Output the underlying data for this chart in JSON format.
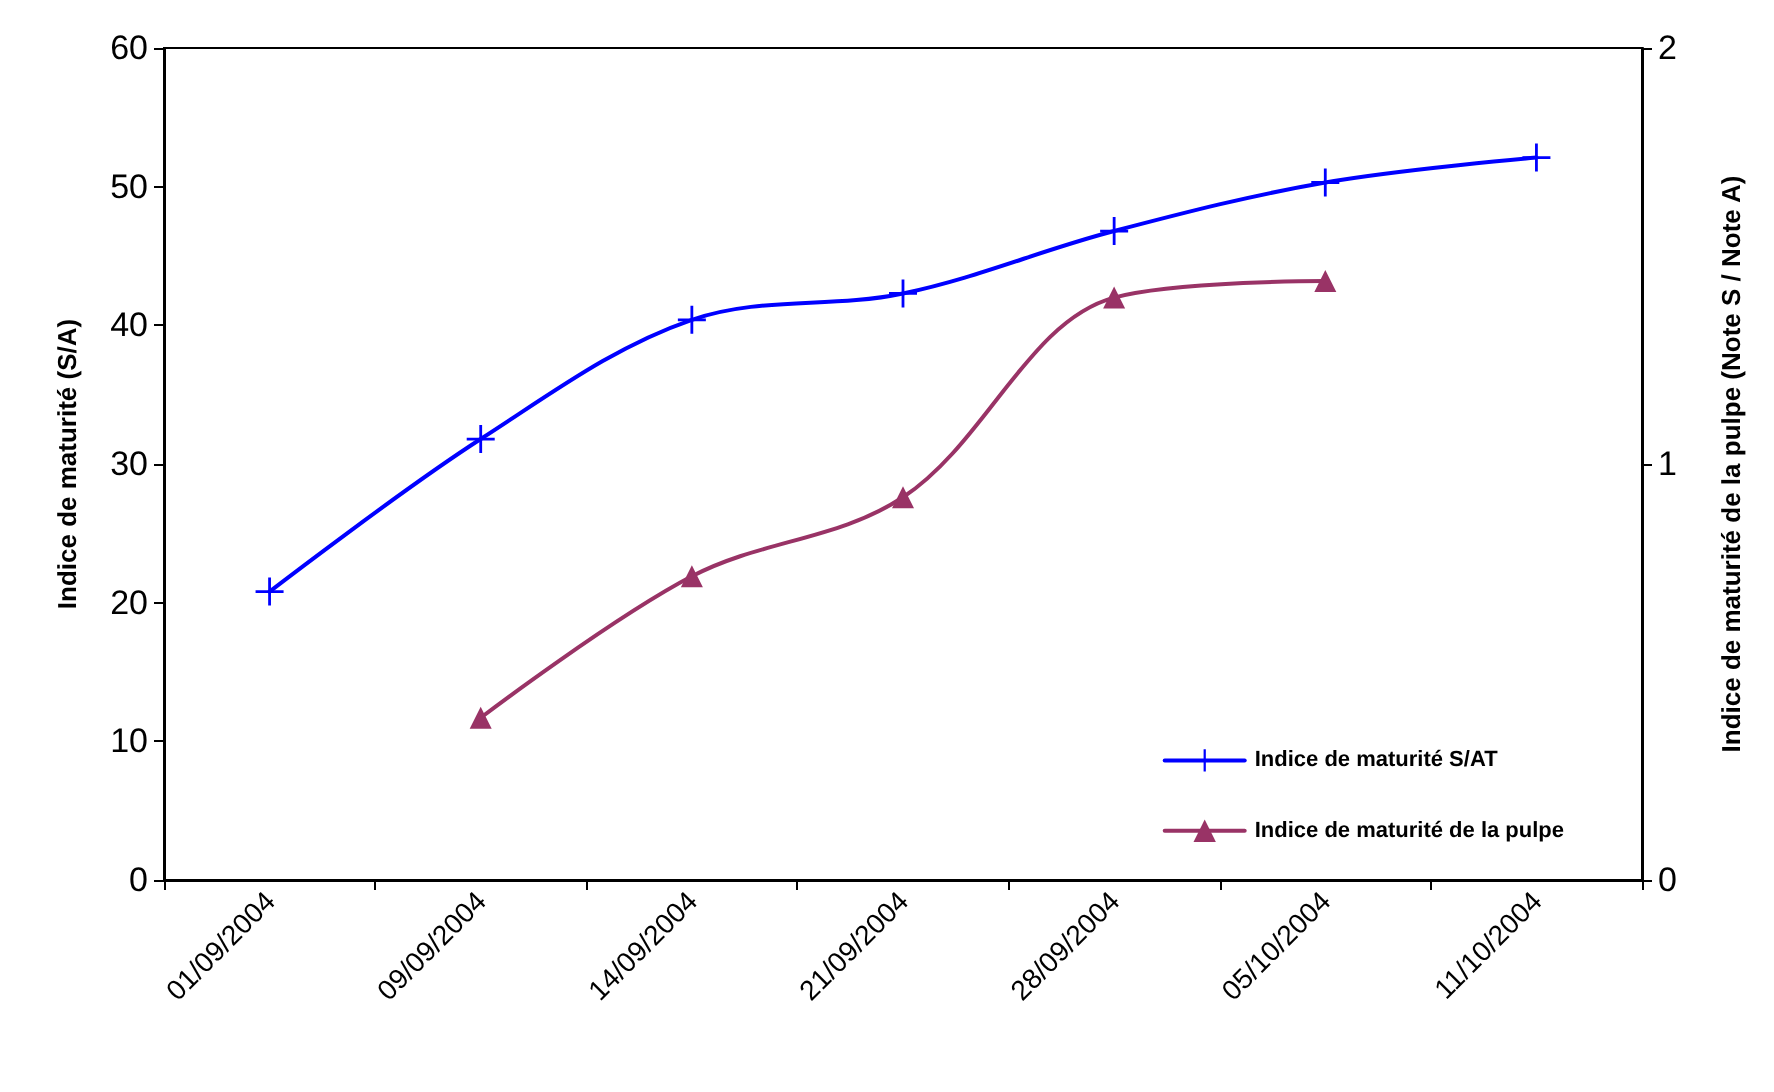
{
  "chart_data": {
    "type": "line",
    "xlabel": null,
    "ylabel": "Indice de maturité (S/A)",
    "y2label": "Indice de maturité de la pulpe (Note S / Note A)",
    "categories": [
      "01/09/2004",
      "09/09/2004",
      "14/09/2004",
      "21/09/2004",
      "28/09/2004",
      "05/10/2004",
      "11/10/2004"
    ],
    "series": [
      {
        "name": "Indice de maturité S/AT",
        "color": "#0000ff",
        "marker": "cross",
        "values": [
          20.8,
          31.8,
          40.4,
          42.3,
          46.8,
          50.3,
          52.1
        ]
      },
      {
        "name": "Indice de maturité de la pulpe",
        "color": "#993366",
        "marker": "triangle",
        "axis": "y2",
        "values": [
          null,
          0.39,
          0.73,
          0.92,
          1.4,
          1.44,
          null
        ]
      }
    ],
    "ylim": [
      0,
      60
    ],
    "yticks": [
      0,
      10,
      20,
      30,
      40,
      50,
      60
    ],
    "y2lim": [
      0,
      2
    ],
    "y2ticks": [
      0,
      1,
      2
    ],
    "grid": false,
    "legend": "bottom right",
    "line_style": "solid"
  }
}
